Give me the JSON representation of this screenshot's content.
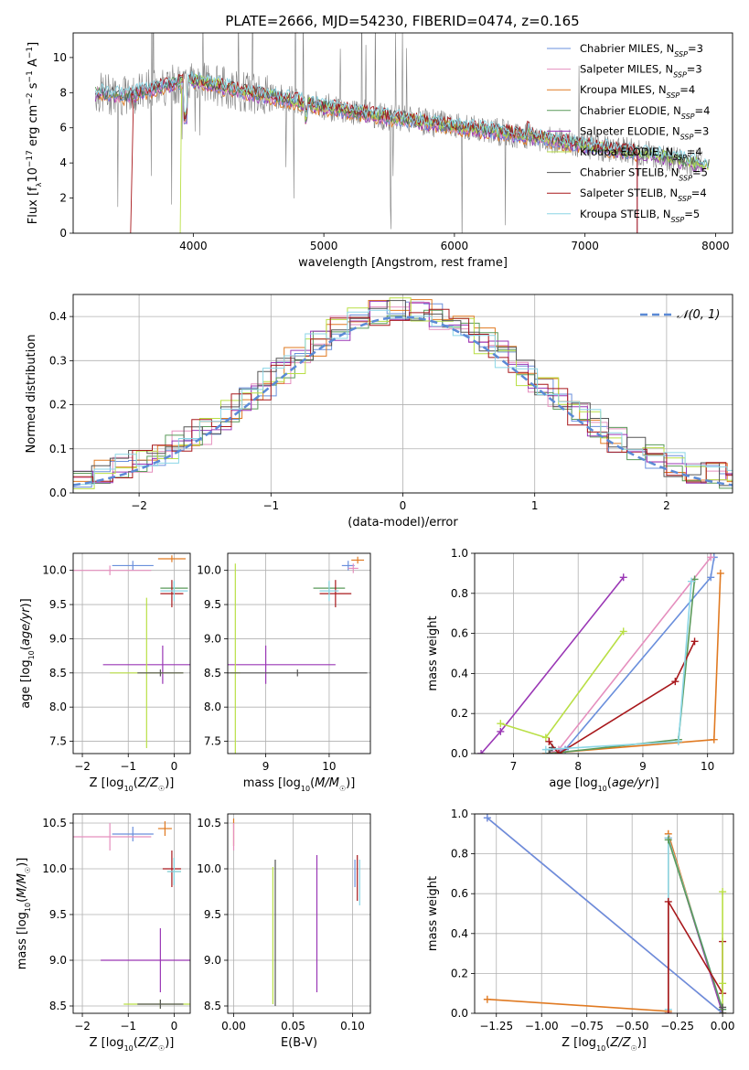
{
  "figure": {
    "title": "PLATE=2666, MJD=54230, FIBERID=0474, z=0.165"
  },
  "colors": {
    "Chabrier MILES": "#6a8fdc",
    "Salpeter MILES": "#e58fbe",
    "Kroupa MILES": "#e07a22",
    "Chabrier ELODIE": "#5a9a5a",
    "Salpeter ELODIE": "#9a37b5",
    "Kroupa ELODIE": "#b9df45",
    "Chabrier STELIB": "#555555",
    "Salpeter STELIB": "#a8181c",
    "Kroupa STELIB": "#8bd6e6",
    "data": "#808080"
  },
  "chart_data": [
    {
      "id": "spectrum",
      "type": "line",
      "xlabel": "wavelength [Angstrom, rest frame]",
      "ylabel": "Flux [f_λ10^-17 erg cm^-2 s^-1 A^-1]",
      "xlim": [
        3080,
        8130
      ],
      "ylim": [
        0,
        11.4
      ],
      "xticks": [
        4000,
        5000,
        6000,
        7000,
        8000
      ],
      "yticks": [
        0,
        2,
        4,
        6,
        8,
        10
      ],
      "grid": false,
      "legend_position": "upper-right",
      "legend": [
        {
          "base": "Chabrier MILES",
          "n": "3"
        },
        {
          "base": "Salpeter MILES",
          "n": "3"
        },
        {
          "base": "Kroupa MILES",
          "n": "4"
        },
        {
          "base": "Chabrier ELODIE",
          "n": "4"
        },
        {
          "base": "Salpeter ELODIE",
          "n": "3"
        },
        {
          "base": "Kroupa ELODIE",
          "n": "4"
        },
        {
          "base": "Chabrier STELIB",
          "n": "5"
        },
        {
          "base": "Salpeter STELIB",
          "n": "4"
        },
        {
          "base": "Kroupa STELIB",
          "n": "5"
        }
      ],
      "continuum": {
        "x": [
          3250,
          3500,
          3750,
          4000,
          4250,
          4500,
          4750,
          5000,
          5500,
          6000,
          6500,
          7000,
          7500,
          7900
        ],
        "y": [
          8.0,
          7.8,
          8.4,
          8.7,
          8.3,
          7.9,
          7.6,
          7.2,
          6.6,
          6.1,
          5.6,
          5.0,
          4.5,
          3.9
        ]
      }
    },
    {
      "id": "residuals",
      "type": "line",
      "xlabel": "(data-model)/error",
      "ylabel": "Normed distribution",
      "xlim": [
        -2.5,
        2.5
      ],
      "ylim": [
        0,
        0.45
      ],
      "xticks": [
        -2,
        -1,
        0,
        1,
        2
      ],
      "yticks": [
        0.0,
        0.1,
        0.2,
        0.3,
        0.4
      ],
      "grid": true,
      "legend": "N(0,1)",
      "legend_position": "upper-right",
      "gaussian": {
        "mu": 0,
        "sigma": 1
      }
    },
    {
      "id": "age_vs_Z",
      "type": "scatter",
      "xlabel": "Z [log10(Z/Z☉)]",
      "ylabel": "age [log10(age/yr)]",
      "xlim": [
        -2.2,
        0.35
      ],
      "ylim": [
        7.32,
        10.25
      ],
      "xticks": [
        -2,
        -1,
        0
      ],
      "yticks": [
        7.5,
        8.0,
        8.5,
        9.0,
        9.5,
        10.0
      ],
      "grid": true,
      "points": [
        {
          "series": "Chabrier MILES",
          "x": -0.9,
          "y": 10.07,
          "xe": 0.45,
          "ye": 0.07
        },
        {
          "series": "Salpeter MILES",
          "x": -1.4,
          "y": 10.0,
          "xe": 0.9,
          "ye": 0.07
        },
        {
          "series": "Kroupa MILES",
          "x": -0.05,
          "y": 10.17,
          "xe": 0.3,
          "ye": 0.05
        },
        {
          "series": "Chabrier ELODIE",
          "x": 0.0,
          "y": 9.74,
          "xe": 0.3,
          "ye": 0.1
        },
        {
          "series": "Salpeter ELODIE",
          "x": -0.25,
          "y": 8.62,
          "xe": 1.3,
          "ye": 0.28
        },
        {
          "series": "Kroupa ELODIE",
          "x": -0.6,
          "y": 8.5,
          "xe": 0.8,
          "ye": 1.1
        },
        {
          "series": "Chabrier STELIB",
          "x": -0.3,
          "y": 8.5,
          "xe": 0.5,
          "ye": 0.05
        },
        {
          "series": "Salpeter STELIB",
          "x": -0.05,
          "y": 9.66,
          "xe": 0.25,
          "ye": 0.2
        },
        {
          "series": "Kroupa STELIB",
          "x": 0.0,
          "y": 9.7,
          "xe": 0.3,
          "ye": 0.15
        }
      ]
    },
    {
      "id": "age_vs_mass",
      "type": "scatter",
      "xlabel": "mass [log10(M/M☉)]",
      "xlim": [
        8.4,
        10.65
      ],
      "ylim": [
        7.32,
        10.25
      ],
      "xticks": [
        9,
        10
      ],
      "yticks": [
        7.5,
        8.0,
        8.5,
        9.0,
        9.5,
        10.0
      ],
      "grid": true,
      "points": [
        {
          "series": "Chabrier MILES",
          "x": 10.3,
          "y": 10.07,
          "xe": 0.1,
          "ye": 0.07
        },
        {
          "series": "Salpeter MILES",
          "x": 10.38,
          "y": 10.03,
          "xe": 0.08,
          "ye": 0.07
        },
        {
          "series": "Kroupa MILES",
          "x": 10.45,
          "y": 10.15,
          "xe": 0.1,
          "ye": 0.05
        },
        {
          "series": "Chabrier ELODIE",
          "x": 10.0,
          "y": 9.74,
          "xe": 0.25,
          "ye": 0.1
        },
        {
          "series": "Salpeter ELODIE",
          "x": 9.0,
          "y": 8.62,
          "xe": 1.1,
          "ye": 0.28
        },
        {
          "series": "Kroupa ELODIE",
          "x": 8.52,
          "y": 8.5,
          "xe": 0.08,
          "ye": 1.6
        },
        {
          "series": "Chabrier STELIB",
          "x": 9.5,
          "y": 8.5,
          "xe": 1.1,
          "ye": 0.05
        },
        {
          "series": "Salpeter STELIB",
          "x": 10.1,
          "y": 9.66,
          "xe": 0.25,
          "ye": 0.2
        },
        {
          "series": "Kroupa STELIB",
          "x": 10.0,
          "y": 9.7,
          "xe": 0.15,
          "ye": 0.15
        }
      ]
    },
    {
      "id": "weight_vs_age",
      "type": "line",
      "xlabel": "age [log10(age/yr)]",
      "ylabel": "mass weight",
      "xlim": [
        6.4,
        10.4
      ],
      "ylim": [
        0,
        1
      ],
      "xticks": [
        7,
        8,
        9,
        10
      ],
      "yticks": [
        0.0,
        0.2,
        0.4,
        0.6,
        0.8,
        1.0
      ],
      "grid": true,
      "series": [
        {
          "name": "Chabrier MILES",
          "x": [
            7.6,
            7.8,
            10.05,
            10.1
          ],
          "y": [
            0.0,
            0.02,
            0.88,
            0.98
          ]
        },
        {
          "name": "Salpeter MILES",
          "x": [
            7.55,
            7.7,
            10.05
          ],
          "y": [
            0.0,
            0.02,
            0.98
          ]
        },
        {
          "name": "Kroupa MILES",
          "x": [
            7.5,
            10.1,
            10.2
          ],
          "y": [
            0.0,
            0.07,
            0.9
          ]
        },
        {
          "name": "Chabrier ELODIE",
          "x": [
            7.55,
            9.55,
            9.8
          ],
          "y": [
            0.0,
            0.07,
            0.87
          ]
        },
        {
          "name": "Salpeter ELODIE",
          "x": [
            6.5,
            6.8,
            8.7
          ],
          "y": [
            0.0,
            0.11,
            0.88
          ]
        },
        {
          "name": "Kroupa ELODIE",
          "x": [
            6.8,
            7.5,
            8.7
          ],
          "y": [
            0.15,
            0.08,
            0.61
          ]
        },
        {
          "name": "Chabrier STELIB",
          "x": [
            7.55,
            7.6
          ],
          "y": [
            0.0,
            0.03
          ]
        },
        {
          "name": "Salpeter STELIB",
          "x": [
            7.55,
            7.7,
            9.5,
            9.8
          ],
          "y": [
            0.06,
            0.0,
            0.36,
            0.56
          ]
        },
        {
          "name": "Kroupa STELIB",
          "x": [
            7.5,
            9.55,
            9.75
          ],
          "y": [
            0.02,
            0.06,
            0.86
          ]
        }
      ]
    },
    {
      "id": "mass_vs_Z",
      "type": "scatter",
      "xlabel": "Z [log10(Z/Z☉)]",
      "ylabel": "mass [log10(M/M☉)]",
      "xlim": [
        -2.2,
        0.35
      ],
      "ylim": [
        8.42,
        10.6
      ],
      "xticks": [
        -2,
        -1,
        0
      ],
      "yticks": [
        8.5,
        9.0,
        9.5,
        10.0,
        10.5
      ],
      "grid": true,
      "points": [
        {
          "series": "Chabrier MILES",
          "x": -0.9,
          "y": 10.38,
          "xe": 0.45,
          "ye": 0.08
        },
        {
          "series": "Salpeter MILES",
          "x": -1.4,
          "y": 10.35,
          "xe": 0.9,
          "ye": 0.15
        },
        {
          "series": "Kroupa MILES",
          "x": -0.2,
          "y": 10.44,
          "xe": 0.15,
          "ye": 0.08
        },
        {
          "series": "Chabrier ELODIE",
          "x": 0.0,
          "y": 9.97,
          "xe": 0.15,
          "ye": 0.15
        },
        {
          "series": "Salpeter ELODIE",
          "x": -0.3,
          "y": 9.0,
          "xe": 1.3,
          "ye": 0.35
        },
        {
          "series": "Kroupa ELODIE",
          "x": -0.3,
          "y": 8.52,
          "xe": 0.8,
          "ye": 0.05
        },
        {
          "series": "Chabrier STELIB",
          "x": -0.3,
          "y": 8.52,
          "xe": 0.5,
          "ye": 0.05
        },
        {
          "series": "Salpeter STELIB",
          "x": -0.05,
          "y": 10.0,
          "xe": 0.2,
          "ye": 0.2
        },
        {
          "series": "Kroupa STELIB",
          "x": 0.0,
          "y": 9.97,
          "xe": 0.15,
          "ye": 0.15
        }
      ]
    },
    {
      "id": "mass_vs_ebv",
      "type": "scatter",
      "xlabel": "E(B-V)",
      "xlim": [
        -0.005,
        0.115
      ],
      "ylim": [
        8.42,
        10.6
      ],
      "xticks": [
        0.0,
        0.05,
        0.1
      ],
      "yticks": [
        8.5,
        9.0,
        9.5,
        10.0,
        10.5
      ],
      "grid": true,
      "points": [
        {
          "series": "Kroupa MILES",
          "x": 0.0,
          "y": 10.4,
          "ye": 0.15
        },
        {
          "series": "Salpeter MILES",
          "x": 0.0,
          "y": 10.35,
          "ye": 0.15
        },
        {
          "series": "Kroupa ELODIE",
          "x": 0.033,
          "y": 9.27,
          "ye": 0.75
        },
        {
          "series": "Chabrier STELIB",
          "x": 0.035,
          "y": 9.3,
          "ye": 0.8
        },
        {
          "series": "Salpeter ELODIE",
          "x": 0.07,
          "y": 9.4,
          "ye": 0.75
        },
        {
          "series": "Salpeter STELIB",
          "x": 0.104,
          "y": 9.9,
          "ye": 0.25
        },
        {
          "series": "Kroupa STELIB",
          "x": 0.106,
          "y": 9.85,
          "ye": 0.25
        },
        {
          "series": "Chabrier MILES",
          "x": 0.102,
          "y": 9.95,
          "ye": 0.15
        }
      ]
    },
    {
      "id": "weight_vs_Z",
      "type": "line",
      "xlabel": "Z [log10(Z/Z☉)]",
      "ylabel": "mass weight",
      "xlim": [
        -1.37,
        0.06
      ],
      "ylim": [
        0,
        1
      ],
      "xticks": [
        -1.25,
        -1.0,
        -0.75,
        -0.5,
        -0.25,
        0.0
      ],
      "yticks": [
        0.0,
        0.2,
        0.4,
        0.6,
        0.8,
        1.0
      ],
      "grid": true,
      "series": [
        {
          "name": "Salpeter MILES",
          "x": [
            -1.3,
            0.0
          ],
          "y": [
            0.98,
            0.0
          ]
        },
        {
          "name": "Chabrier MILES",
          "x": [
            -1.3,
            0.0
          ],
          "y": [
            0.98,
            0.0
          ]
        },
        {
          "name": "Kroupa MILES",
          "x": [
            -1.3,
            -0.3,
            -0.3,
            0.0
          ],
          "y": [
            0.07,
            0.01,
            0.9,
            0.0
          ]
        },
        {
          "name": "Salpeter ELODIE",
          "x": [
            -0.3,
            0.0
          ],
          "y": [
            0.88,
            0.0
          ]
        },
        {
          "name": "Kroupa STELIB",
          "x": [
            -0.3,
            -0.3,
            0.0
          ],
          "y": [
            0.02,
            0.88,
            0.02
          ]
        },
        {
          "name": "Chabrier ELODIE",
          "x": [
            -0.3,
            0.0
          ],
          "y": [
            0.87,
            0.02
          ]
        },
        {
          "name": "Salpeter STELIB",
          "x": [
            -0.3,
            -0.3,
            0.0,
            0.0
          ],
          "y": [
            0.0,
            0.56,
            0.1,
            0.36
          ]
        },
        {
          "name": "Kroupa ELODIE",
          "x": [
            0.0,
            0.0,
            0.0
          ],
          "y": [
            0.0,
            0.61,
            0.15
          ]
        },
        {
          "name": "Chabrier STELIB",
          "x": [
            0.0,
            0.0
          ],
          "y": [
            0.0,
            0.03
          ]
        }
      ]
    }
  ]
}
